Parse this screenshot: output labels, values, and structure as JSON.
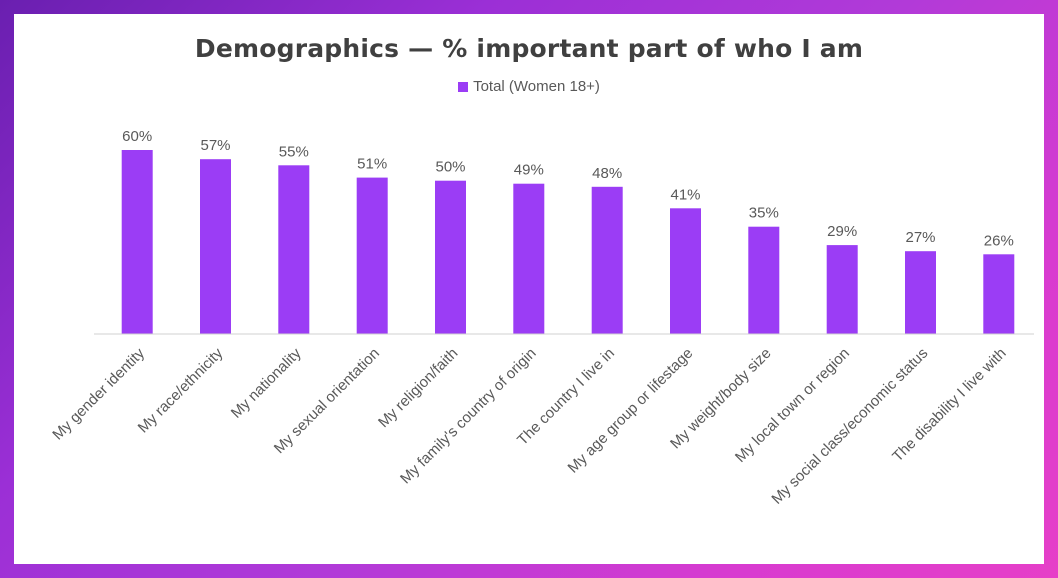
{
  "chart_data": {
    "type": "bar",
    "title": "Demographics — % important part of who I am",
    "legend": {
      "placement": "top-center"
    },
    "categories": [
      "My gender identity",
      "My race/ethnicity",
      "My nationality",
      "My sexual orientation",
      "My religion/faith",
      "My family's country of origin",
      "The country I live in",
      "My age group or lifestage",
      "My weight/body size",
      "My local town or region",
      "My social class/economic status",
      "The disability I live with"
    ],
    "series": [
      {
        "name": "Total (Women 18+)",
        "values": [
          60,
          57,
          55,
          51,
          50,
          49,
          48,
          41,
          35,
          29,
          27,
          26
        ],
        "color": "#9b3df5"
      }
    ],
    "value_labels": [
      "60%",
      "57%",
      "55%",
      "51%",
      "50%",
      "49%",
      "48%",
      "41%",
      "35%",
      "29%",
      "27%",
      "26%"
    ],
    "ylim": [
      0,
      60
    ],
    "grid": false
  }
}
